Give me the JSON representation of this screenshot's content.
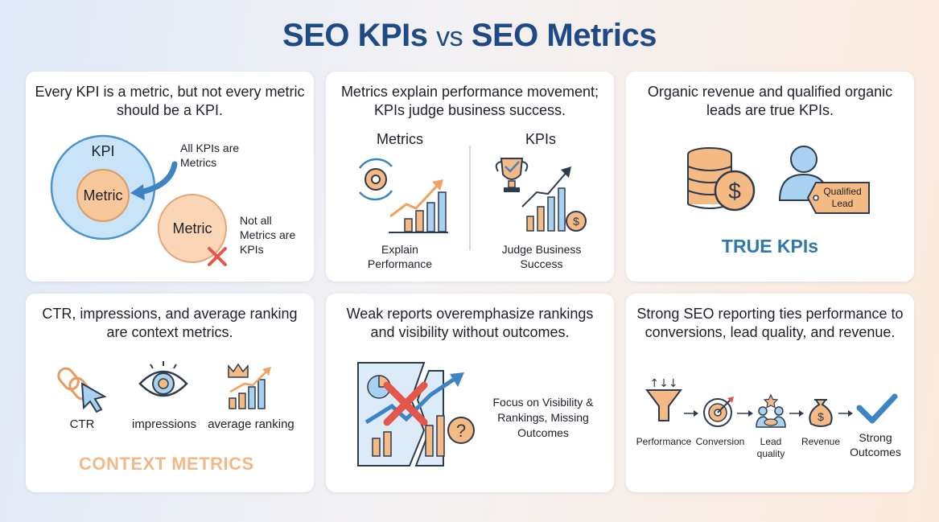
{
  "title": {
    "part1": "SEO KPIs",
    "vs": "vs",
    "part2": "SEO Metrics"
  },
  "cards": [
    {
      "heading": "Every KPI is a metric, but not every metric should be a KPI.",
      "kpi_label": "KPI",
      "metric_label_inner": "Metric",
      "metric_label_outer": "Metric",
      "note_all": "All KPIs are Metrics",
      "note_not": "Not all Metrics are KPIs"
    },
    {
      "heading": "Metrics explain performance movement; KPIs judge business success.",
      "left_title": "Metrics",
      "right_title": "KPIs",
      "left_caption": "Explain Performance",
      "right_caption": "Judge Business Success"
    },
    {
      "heading": "Organic revenue and qualified organic leads are true KPIs.",
      "tag_label": "Qualified Lead",
      "banner": "TRUE KPIs"
    },
    {
      "heading": "CTR, impressions, and average ranking are context metrics.",
      "items": [
        "CTR",
        "impressions",
        "average ranking"
      ],
      "banner": "CONTEXT METRICS"
    },
    {
      "heading": "Weak reports overemphasize rankings and visibility without outcomes.",
      "caption": "Focus on Visibility & Rankings, Missing Outcomes"
    },
    {
      "heading": "Strong SEO reporting ties performance to conversions, lead quality, and revenue.",
      "steps": [
        "Performance",
        "Conversion",
        "Lead quality",
        "Revenue",
        "Strong Outcomes"
      ]
    }
  ],
  "colors": {
    "title": "#1e4a85",
    "blue": "#2f77ad",
    "light_blue": "#a9d1f0",
    "orange": "#f2b988",
    "red": "#e5554a",
    "dark_line": "#2d3b4f"
  }
}
